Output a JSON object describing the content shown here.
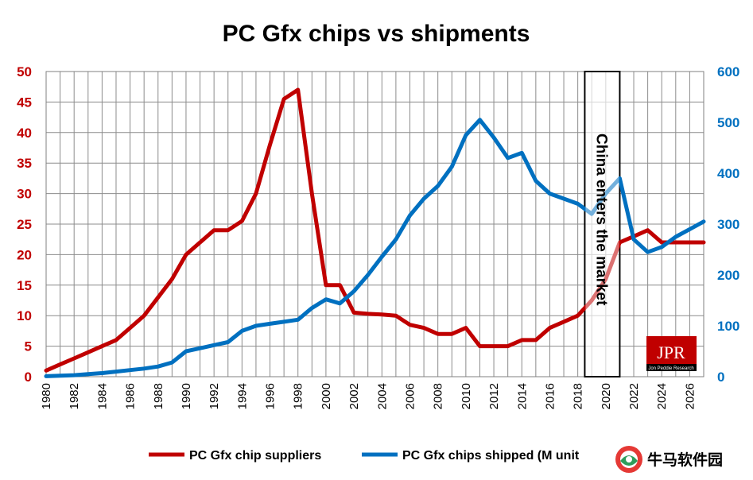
{
  "chart_data": {
    "type": "line",
    "title": "PC Gfx chips vs shipments",
    "x": [
      1980,
      1981,
      1982,
      1983,
      1984,
      1985,
      1986,
      1987,
      1988,
      1989,
      1990,
      1991,
      1992,
      1993,
      1994,
      1995,
      1996,
      1997,
      1998,
      1999,
      2000,
      2001,
      2002,
      2003,
      2004,
      2005,
      2006,
      2007,
      2008,
      2009,
      2010,
      2011,
      2012,
      2013,
      2014,
      2015,
      2016,
      2017,
      2018,
      2019,
      2020,
      2021,
      2022,
      2023,
      2024,
      2025,
      2026,
      2027
    ],
    "x_ticks": [
      "1980",
      "1982",
      "1984",
      "1986",
      "1988",
      "1990",
      "1992",
      "1994",
      "1996",
      "1998",
      "2000",
      "2002",
      "2004",
      "2006",
      "2008",
      "2010",
      "2012",
      "2014",
      "2016",
      "2018",
      "2020",
      "2022",
      "2024",
      "2026"
    ],
    "y_left": {
      "range": [
        0,
        50
      ],
      "ticks": [
        "0",
        "5",
        "10",
        "15",
        "20",
        "25",
        "30",
        "35",
        "40",
        "45",
        "50"
      ],
      "color": "#c00000"
    },
    "y_right": {
      "range": [
        0,
        600
      ],
      "ticks": [
        "0",
        "100",
        "200",
        "300",
        "400",
        "500",
        "600"
      ],
      "color": "#0070c0"
    },
    "grid": true,
    "legend_position": "bottom",
    "series": [
      {
        "name": "PC Gfx chip suppliers",
        "axis": "left",
        "color": "#c00000",
        "values": [
          1,
          2,
          3,
          4,
          5,
          6,
          8,
          10,
          13,
          16,
          20,
          22,
          24,
          24,
          25.5,
          30,
          38,
          45.5,
          47,
          30,
          15,
          15,
          10.5,
          10.3,
          10.2,
          10,
          8.5,
          8,
          7,
          7,
          8,
          5,
          5,
          5,
          6,
          6,
          8,
          9,
          10,
          12.5,
          16,
          22,
          23,
          24,
          22,
          22,
          22,
          22
        ]
      },
      {
        "name": "PC Gfx chips shipped (M unit",
        "axis": "right",
        "color": "#0070c0",
        "values": [
          1,
          2,
          3,
          5,
          7,
          10,
          13,
          16,
          20,
          28,
          50,
          56,
          62,
          68,
          90,
          100,
          104,
          108,
          112,
          135,
          152,
          144,
          168,
          200,
          236,
          270,
          317,
          350,
          375,
          413,
          475,
          505,
          470,
          430,
          440,
          385,
          360,
          350,
          340,
          320,
          360,
          390,
          270,
          245,
          255,
          275,
          290,
          305
        ]
      }
    ],
    "highlight": {
      "x_start": 2018.5,
      "x_end": 2021,
      "label": "China enters the market"
    }
  },
  "logo": {
    "text": "JPR",
    "subtitle": "Jon Peddie Research"
  },
  "watermark": {
    "text": "牛马软件园"
  }
}
